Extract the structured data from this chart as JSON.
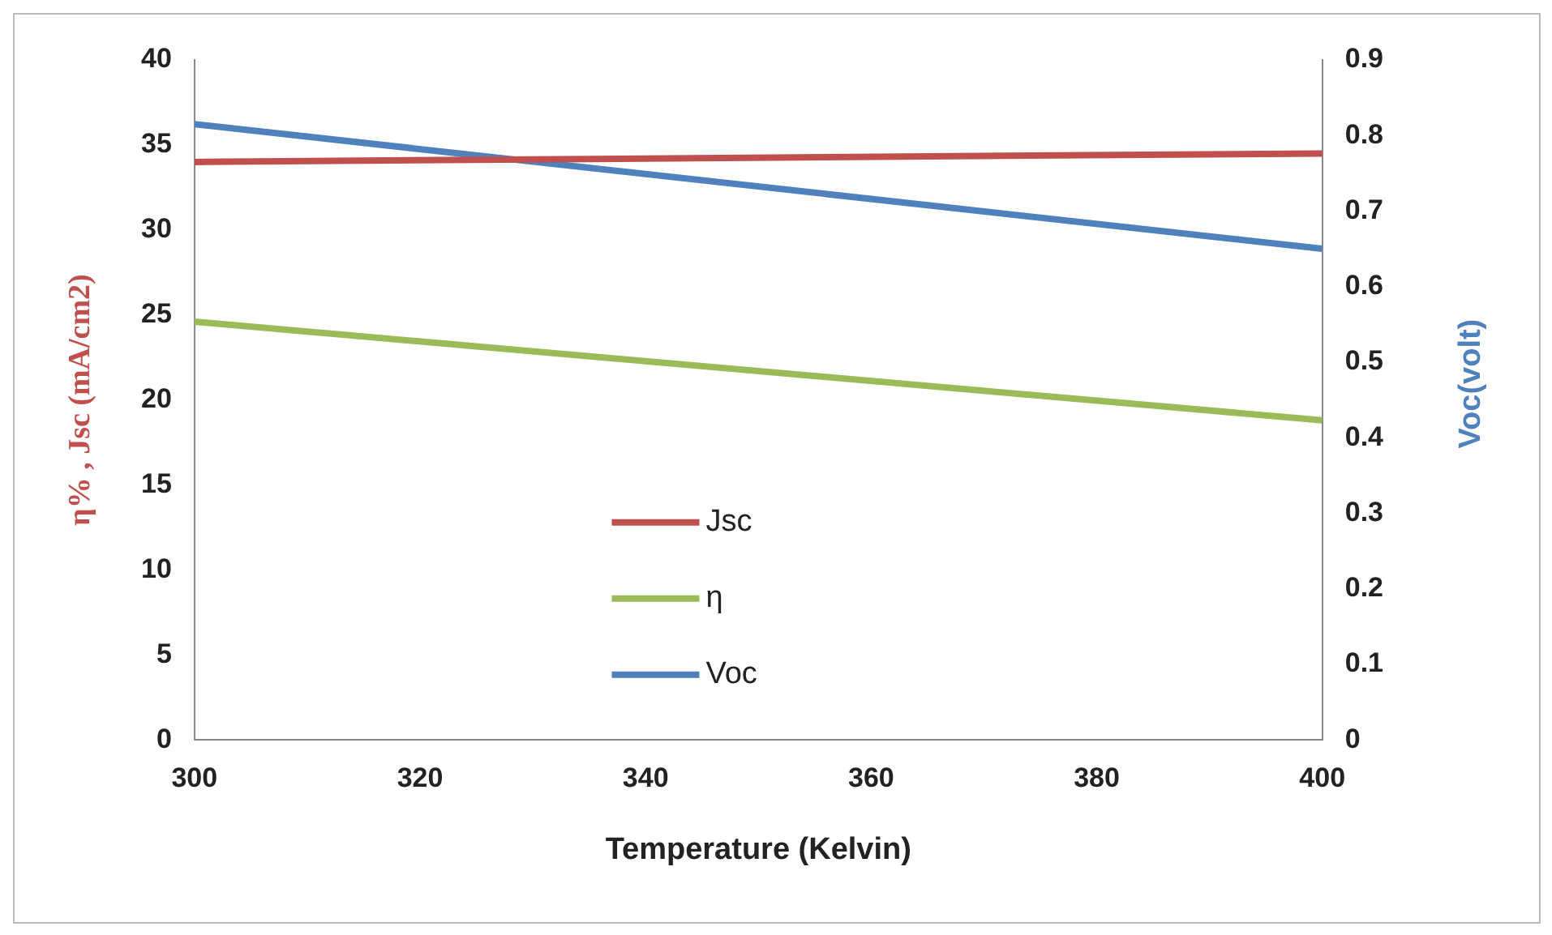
{
  "chart_data": {
    "type": "line",
    "xlabel": "Temperature (Kelvin)",
    "ylabel": "η% , Jsc (mA/cm2)",
    "y2label": "Voc(volt)",
    "x": [
      300,
      400
    ],
    "xlim": [
      300,
      400
    ],
    "xticks": [
      300,
      320,
      340,
      360,
      380,
      400
    ],
    "ylim": [
      0,
      40
    ],
    "yticks": [
      0,
      5,
      10,
      15,
      20,
      25,
      30,
      35,
      40
    ],
    "y2lim": [
      0,
      0.9
    ],
    "y2ticks": [
      0,
      0.1,
      0.2,
      0.3,
      0.4,
      0.5,
      0.6,
      0.7,
      0.8,
      0.9
    ],
    "series": [
      {
        "name": "Jsc",
        "color": "#c0504d",
        "values": [
          34,
          34.5
        ]
      },
      {
        "name": "η",
        "color": "#9bbb59",
        "values": [
          24.6,
          18.8
        ]
      },
      {
        "name": "Voc",
        "color": "#4f81bd",
        "values": [
          0.815,
          0.65
        ],
        "axis": "y2"
      }
    ],
    "grid": false,
    "legend": "center",
    "marker": "none",
    "line_style": "solid"
  }
}
